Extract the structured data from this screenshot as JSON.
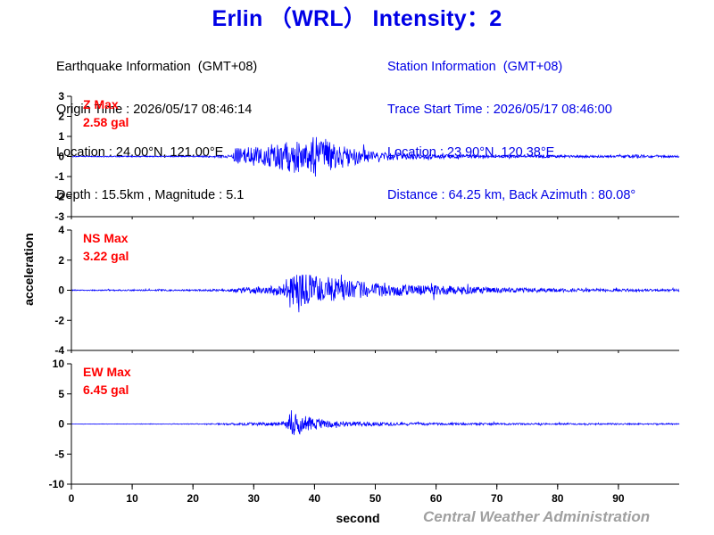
{
  "title": "Erlin （WRL） Intensity：2",
  "earthquake_info": {
    "heading": "Earthquake Information  (GMT+08)",
    "origin_time": "Origin Time : 2026/05/17 08:46:14",
    "location": "Location : 24.00°N, 121.00°E",
    "depth_magnitude": "Depth : 15.5km , Magnitude : 5.1"
  },
  "station_info": {
    "heading": "Station Information  (GMT+08)",
    "trace_start": "Trace Start Time : 2026/05/17 08:46:00",
    "location": "Location : 23.90°N, 120.38°E",
    "distance": "Distance : 64.25 km, Back Azimuth : 80.08°"
  },
  "credit": "Central Weather Administration",
  "colors": {
    "trace": "#0000ff",
    "title": "#0000e6",
    "max_label": "#ff0000",
    "credit": "#a0a0a0"
  },
  "chart_data": {
    "type": "line",
    "xlabel": "second",
    "ylabel": "acceleration",
    "xlim": [
      0,
      100
    ],
    "xticks": [
      0,
      10,
      20,
      30,
      40,
      50,
      60,
      70,
      80,
      90
    ],
    "panels": [
      {
        "component": "Z",
        "max_label": "Z Max",
        "max_value": "2.58 gal",
        "ylim": [
          -3,
          3
        ],
        "yticks": [
          -3,
          -2,
          -1,
          0,
          1,
          2,
          3
        ],
        "envelope": [
          [
            0,
            0.05
          ],
          [
            20,
            0.06
          ],
          [
            24,
            0.12
          ],
          [
            26.5,
            0.15
          ],
          [
            27,
            0.9
          ],
          [
            30,
            0.95
          ],
          [
            33,
            1.0
          ],
          [
            35,
            1.4
          ],
          [
            37,
            1.7
          ],
          [
            39,
            1.8
          ],
          [
            40.5,
            2.3
          ],
          [
            42,
            1.7
          ],
          [
            44,
            1.3
          ],
          [
            46,
            0.9
          ],
          [
            50,
            0.5
          ],
          [
            55,
            0.3
          ],
          [
            60,
            0.22
          ],
          [
            70,
            0.12
          ],
          [
            80,
            0.12
          ],
          [
            90,
            0.12
          ],
          [
            93,
            0.2
          ],
          [
            95,
            0.12
          ],
          [
            100,
            0.1
          ]
        ]
      },
      {
        "component": "NS",
        "max_label": "NS Max",
        "max_value": "3.22 gal",
        "ylim": [
          -4,
          4
        ],
        "yticks": [
          -4,
          -2,
          0,
          2,
          4
        ],
        "envelope": [
          [
            0,
            0.06
          ],
          [
            20,
            0.1
          ],
          [
            26,
            0.15
          ],
          [
            28,
            0.35
          ],
          [
            32,
            0.5
          ],
          [
            35,
            0.9
          ],
          [
            36.3,
            2.9
          ],
          [
            37.5,
            2.2
          ],
          [
            40,
            2.0
          ],
          [
            42,
            1.8
          ],
          [
            45,
            1.4
          ],
          [
            48,
            1.1
          ],
          [
            52,
            0.8
          ],
          [
            58,
            0.7
          ],
          [
            62,
            0.6
          ],
          [
            70,
            0.35
          ],
          [
            80,
            0.25
          ],
          [
            90,
            0.2
          ],
          [
            100,
            0.15
          ]
        ]
      },
      {
        "component": "EW",
        "max_label": "EW Max",
        "max_value": "6.45 gal",
        "ylim": [
          -10,
          10
        ],
        "yticks": [
          -10,
          -5,
          0,
          5,
          10
        ],
        "envelope": [
          [
            0,
            0.05
          ],
          [
            20,
            0.1
          ],
          [
            26,
            0.3
          ],
          [
            28,
            0.45
          ],
          [
            33,
            0.6
          ],
          [
            35.5,
            1.2
          ],
          [
            36.3,
            5.5
          ],
          [
            37.5,
            3.2
          ],
          [
            39,
            2.3
          ],
          [
            41,
            1.6
          ],
          [
            44,
            1.0
          ],
          [
            48,
            0.7
          ],
          [
            55,
            0.45
          ],
          [
            65,
            0.35
          ],
          [
            80,
            0.25
          ],
          [
            100,
            0.2
          ]
        ]
      }
    ]
  }
}
